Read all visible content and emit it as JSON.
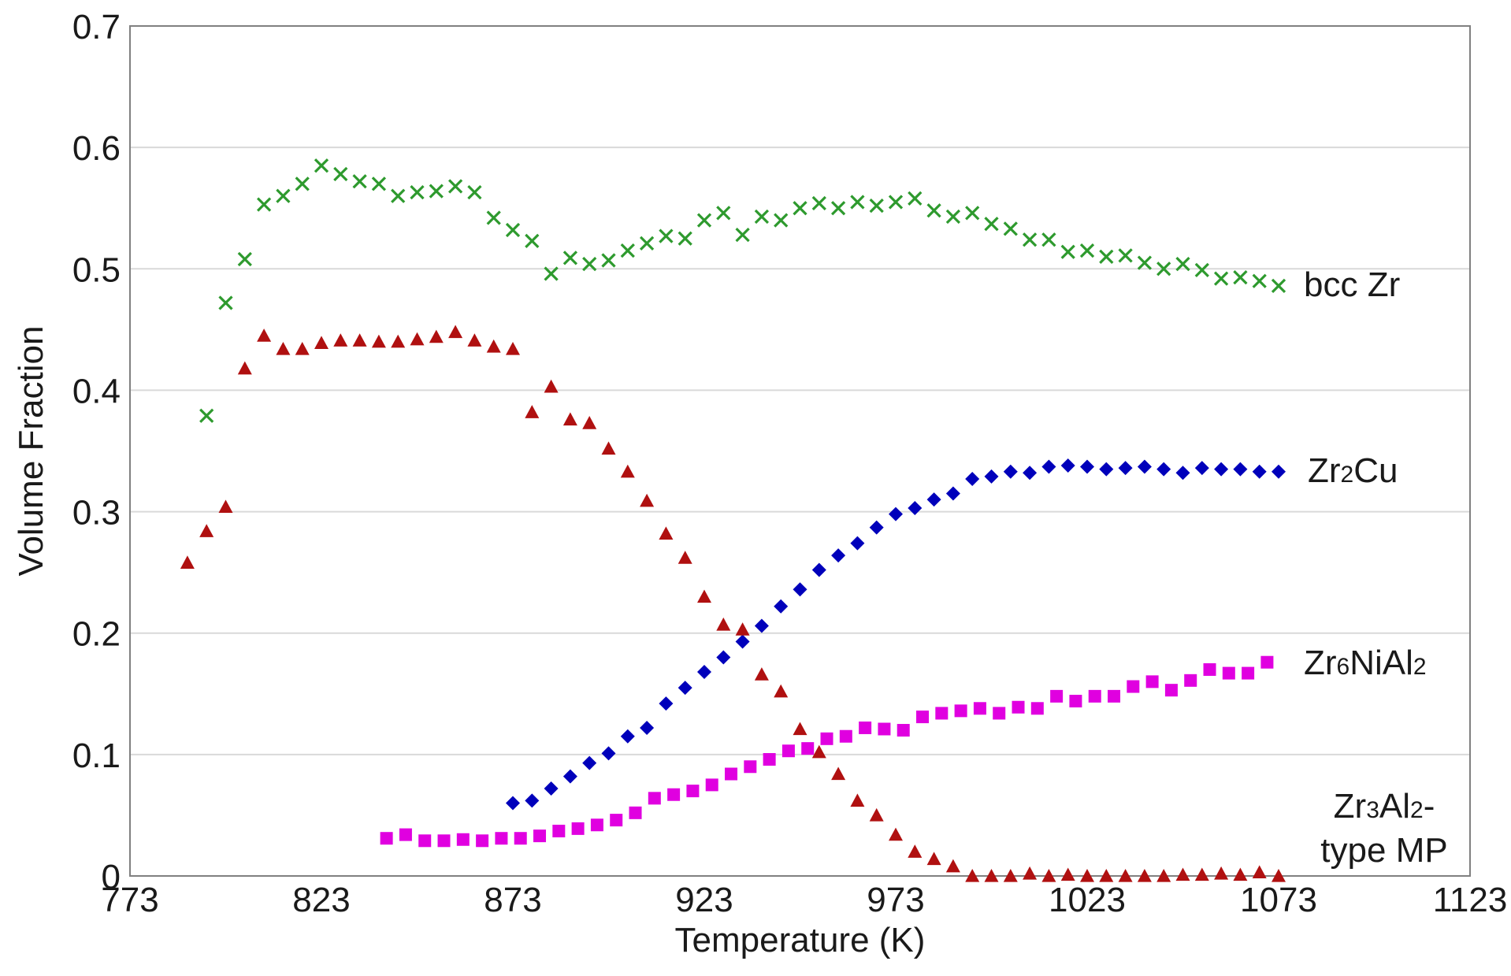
{
  "chart_data": {
    "type": "scatter",
    "title": "",
    "xlabel": "Temperature (K)",
    "ylabel": "Volume Fraction",
    "xlim": [
      773,
      1123
    ],
    "ylim": [
      0,
      0.7
    ],
    "xticks": [
      "773",
      "823",
      "873",
      "923",
      "973",
      "1023",
      "1073",
      "1123"
    ],
    "yticks": [
      "0",
      "0.1",
      "0.2",
      "0.3",
      "0.4",
      "0.5",
      "0.6",
      "0.7"
    ],
    "grid": "horizontal",
    "legend": "none",
    "series": [
      {
        "name": "bcc Zr",
        "label_parts": [
          [
            "bcc Zr",
            false
          ]
        ],
        "marker": "x",
        "color": "#2e9a2e",
        "x": [
          793,
          798,
          803,
          808,
          813,
          818,
          823,
          828,
          833,
          838,
          843,
          848,
          853,
          858,
          863,
          868,
          873,
          878,
          883,
          888,
          893,
          898,
          903,
          908,
          913,
          918,
          923,
          928,
          933,
          938,
          943,
          948,
          953,
          958,
          963,
          968,
          973,
          978,
          983,
          988,
          993,
          998,
          1003,
          1008,
          1013,
          1018,
          1023,
          1028,
          1033,
          1038,
          1043,
          1048,
          1053,
          1058,
          1063,
          1068,
          1073
        ],
        "y": [
          0.379,
          0.472,
          0.508,
          0.553,
          0.56,
          0.57,
          0.585,
          0.578,
          0.572,
          0.57,
          0.56,
          0.563,
          0.564,
          0.568,
          0.563,
          0.542,
          0.532,
          0.523,
          0.496,
          0.509,
          0.504,
          0.507,
          0.515,
          0.521,
          0.527,
          0.525,
          0.54,
          0.546,
          0.528,
          0.543,
          0.54,
          0.55,
          0.554,
          0.55,
          0.555,
          0.552,
          0.555,
          0.558,
          0.548,
          0.543,
          0.546,
          0.537,
          0.533,
          0.524,
          0.524,
          0.514,
          0.515,
          0.51,
          0.511,
          0.505,
          0.5,
          0.504,
          0.499,
          0.492,
          0.493,
          0.49,
          0.486
        ]
      },
      {
        "name": "Zr2Cu",
        "label_parts": [
          [
            "Zr",
            false
          ],
          [
            "2",
            true
          ],
          [
            "Cu",
            false
          ]
        ],
        "marker": "diamond",
        "color": "#0000bb",
        "x": [
          873,
          878,
          883,
          888,
          893,
          898,
          903,
          908,
          913,
          918,
          923,
          928,
          933,
          938,
          943,
          948,
          953,
          958,
          963,
          968,
          973,
          978,
          983,
          988,
          993,
          998,
          1003,
          1008,
          1013,
          1018,
          1023,
          1028,
          1033,
          1038,
          1043,
          1048,
          1053,
          1058,
          1063,
          1068,
          1073
        ],
        "y": [
          0.06,
          0.062,
          0.072,
          0.082,
          0.093,
          0.101,
          0.115,
          0.122,
          0.142,
          0.155,
          0.168,
          0.18,
          0.193,
          0.206,
          0.222,
          0.236,
          0.252,
          0.264,
          0.274,
          0.287,
          0.298,
          0.303,
          0.31,
          0.315,
          0.327,
          0.329,
          0.333,
          0.332,
          0.337,
          0.338,
          0.337,
          0.335,
          0.336,
          0.337,
          0.335,
          0.332,
          0.336,
          0.335,
          0.335,
          0.333,
          0.333
        ]
      },
      {
        "name": "Zr6NiAl2",
        "label_parts": [
          [
            "Zr",
            false
          ],
          [
            "6",
            true
          ],
          [
            "NiAl",
            false
          ],
          [
            "2",
            true
          ]
        ],
        "marker": "square",
        "color": "#e000e0",
        "x": [
          840,
          845,
          850,
          855,
          860,
          865,
          870,
          875,
          880,
          885,
          890,
          895,
          900,
          905,
          910,
          915,
          920,
          925,
          930,
          935,
          940,
          945,
          950,
          955,
          960,
          965,
          970,
          975,
          980,
          985,
          990,
          995,
          1000,
          1005,
          1010,
          1015,
          1020,
          1025,
          1030,
          1035,
          1040,
          1045,
          1050,
          1055,
          1060,
          1065,
          1070
        ],
        "y": [
          0.031,
          0.034,
          0.029,
          0.029,
          0.03,
          0.029,
          0.031,
          0.031,
          0.033,
          0.037,
          0.039,
          0.042,
          0.046,
          0.052,
          0.064,
          0.067,
          0.07,
          0.075,
          0.084,
          0.09,
          0.096,
          0.103,
          0.105,
          0.113,
          0.115,
          0.122,
          0.121,
          0.12,
          0.131,
          0.134,
          0.136,
          0.138,
          0.134,
          0.139,
          0.138,
          0.148,
          0.144,
          0.148,
          0.148,
          0.156,
          0.16,
          0.153,
          0.161,
          0.17,
          0.167,
          0.167,
          0.176
        ]
      },
      {
        "name": "Zr3Al2-type MP",
        "label_parts": [
          [
            "Zr",
            false
          ],
          [
            "3",
            true
          ],
          [
            "Al",
            false
          ],
          [
            "2",
            true
          ],
          [
            "-",
            false
          ]
        ],
        "label_line2": "type MP",
        "marker": "triangle",
        "color": "#b01010",
        "x": [
          788,
          793,
          798,
          803,
          808,
          813,
          818,
          823,
          828,
          833,
          838,
          843,
          848,
          853,
          858,
          863,
          868,
          873,
          878,
          883,
          888,
          893,
          898,
          903,
          908,
          913,
          918,
          923,
          928,
          933,
          938,
          943,
          948,
          953,
          958,
          963,
          968,
          973,
          978,
          983,
          988,
          993,
          998,
          1003,
          1008,
          1013,
          1018,
          1023,
          1028,
          1033,
          1038,
          1043,
          1048,
          1053,
          1058,
          1063,
          1068,
          1073
        ],
        "y": [
          0.258,
          0.284,
          0.304,
          0.418,
          0.445,
          0.434,
          0.434,
          0.439,
          0.441,
          0.441,
          0.44,
          0.44,
          0.442,
          0.444,
          0.448,
          0.441,
          0.436,
          0.434,
          0.382,
          0.403,
          0.376,
          0.373,
          0.352,
          0.333,
          0.309,
          0.282,
          0.262,
          0.23,
          0.207,
          0.203,
          0.166,
          0.152,
          0.121,
          0.102,
          0.084,
          0.062,
          0.05,
          0.034,
          0.02,
          0.014,
          0.008,
          0.0,
          0.0,
          0.0,
          0.002,
          0.0,
          0.001,
          0.0,
          0.0,
          0.0,
          0.0,
          0.0,
          0.001,
          0.001,
          0.002,
          0.001,
          0.003,
          0.0
        ]
      }
    ]
  }
}
